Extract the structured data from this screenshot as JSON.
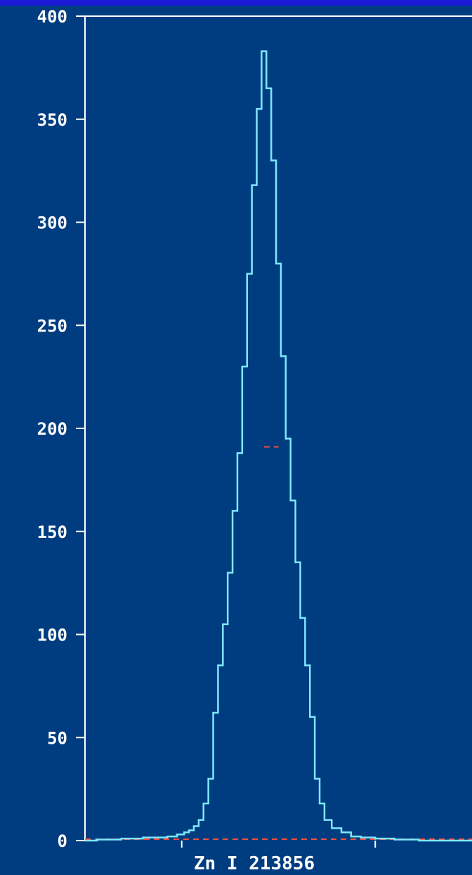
{
  "chart_data": {
    "type": "line",
    "title": "",
    "xlabel": "Zn I 213856",
    "ylabel": "",
    "ylim": [
      0,
      400
    ],
    "yticks": [
      0,
      50,
      100,
      150,
      200,
      250,
      300,
      350,
      400
    ],
    "x_tick_count": 2,
    "grid": false,
    "series": [
      {
        "x": [
          0,
          0.25,
          0.5,
          0.7,
          0.8,
          0.9,
          1.0,
          1.05,
          1.1,
          1.15,
          1.2,
          1.25,
          1.3,
          1.35,
          1.4,
          1.45,
          1.5,
          1.55,
          1.6,
          1.65,
          1.7,
          1.75,
          1.8,
          1.85,
          1.9,
          1.95,
          2.0,
          2.05,
          2.1,
          2.15,
          2.2,
          2.25,
          2.3,
          2.35,
          2.4,
          2.45,
          2.5,
          2.6,
          2.7,
          2.8,
          2.9,
          3.1,
          3.3,
          3.6,
          4.0
        ],
        "y": [
          0,
          0.5,
          1,
          1.5,
          1.5,
          2,
          3,
          4,
          5,
          7,
          10,
          18,
          30,
          62,
          85,
          105,
          130,
          160,
          188,
          230,
          275,
          318,
          355,
          383,
          365,
          330,
          280,
          235,
          195,
          165,
          135,
          108,
          85,
          60,
          30,
          18,
          10,
          6,
          4,
          2,
          1.5,
          1,
          0.5,
          0,
          0
        ],
        "color": "#7fe8ff"
      }
    ],
    "reference_lines": [
      {
        "y": 191,
        "x_from": 1.85,
        "x_to": 2.0,
        "color": "#ff4d3a",
        "style": "dashed"
      },
      {
        "y": 0,
        "color": "#ff4d3a",
        "style": "dashed"
      }
    ],
    "colors": {
      "page_background": "#1a1ad6",
      "plot_background": "#003d80",
      "axis": "#ffffff",
      "text": "#ffffff"
    }
  }
}
